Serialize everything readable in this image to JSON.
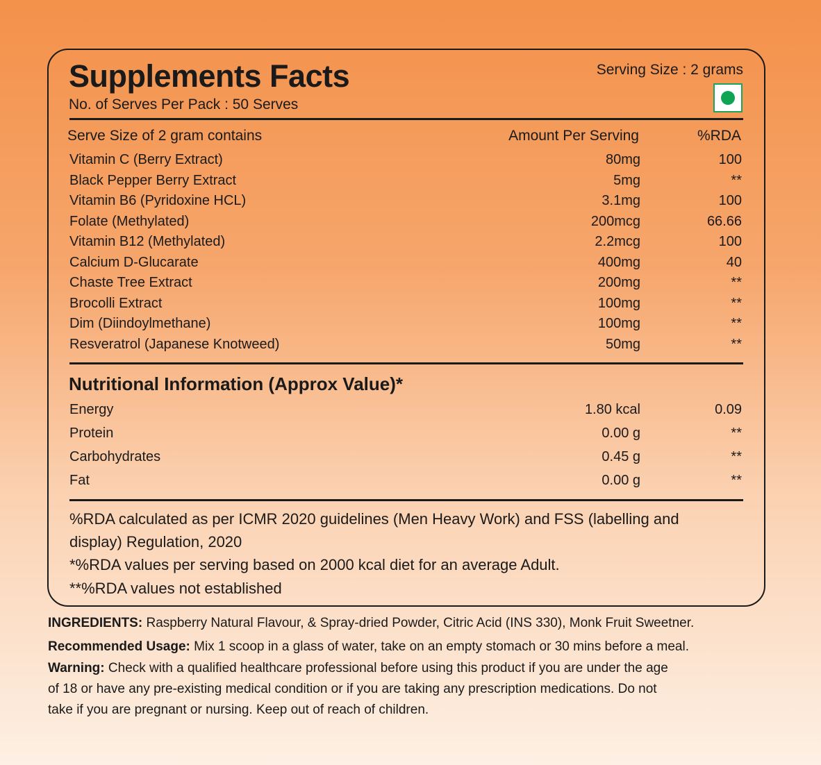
{
  "header": {
    "title": "Supplements Facts",
    "serves_per_pack": "No. of Serves Per Pack : 50 Serves",
    "serving_size": "Serving Size : 2 grams",
    "veg_mark": "veg-symbol-icon",
    "veg_color": "#0ea456"
  },
  "supplements": {
    "columns": [
      "Serve Size of 2 gram contains",
      "Amount Per Serving",
      "%RDA"
    ],
    "rows": [
      {
        "name": "Vitamin C (Berry Extract)",
        "amount": "80mg",
        "rda": "100"
      },
      {
        "name": "Black Pepper Berry Extract",
        "amount": "5mg",
        "rda": "**"
      },
      {
        "name": "Vitamin B6 (Pyridoxine HCL)",
        "amount": "3.1mg",
        "rda": "100"
      },
      {
        "name": "Folate (Methylated)",
        "amount": "200mcg",
        "rda": "66.66"
      },
      {
        "name": "Vitamin B12 (Methylated)",
        "amount": "2.2mcg",
        "rda": "100"
      },
      {
        "name": "Calcium D-Glucarate",
        "amount": "400mg",
        "rda": "40"
      },
      {
        "name": "Chaste Tree Extract",
        "amount": "200mg",
        "rda": "**"
      },
      {
        "name": "Brocolli Extract",
        "amount": "100mg",
        "rda": "**"
      },
      {
        "name": "Dim (Diindoylmethane)",
        "amount": "100mg",
        "rda": "**"
      },
      {
        "name": "Resveratrol (Japanese Knotweed)",
        "amount": "50mg",
        "rda": "**"
      }
    ]
  },
  "nutrition": {
    "title": "Nutritional Information (Approx Value)*",
    "rows": [
      {
        "name": "Energy",
        "amount": "1.80 kcal",
        "rda": "0.09"
      },
      {
        "name": "Protein",
        "amount": "0.00 g",
        "rda": "**"
      },
      {
        "name": "Carbohydrates",
        "amount": "0.45 g",
        "rda": "**"
      },
      {
        "name": "Fat",
        "amount": "0.00 g",
        "rda": "**"
      }
    ]
  },
  "footnotes": [
    "%RDA calculated as per ICMR 2020 guidelines (Men Heavy Work) and FSS (labelling and",
    "display) Regulation, 2020",
    "*%RDA values per serving based on 2000 kcal diet for an average Adult.",
    "**%RDA values not established"
  ],
  "info": {
    "ingredients_label": "INGREDIENTS:",
    "ingredients": " Raspberry Natural Flavour, & Spray-dried Powder, Citric Acid (INS 330), Monk Fruit Sweetner.",
    "usage_label": "Recommended Usage:",
    "usage": " Mix 1 scoop in a glass of water, take on an empty stomach or 30 mins before a meal.",
    "warning_label": "Warning:",
    "warning_lines": [
      " Check with a qualified healthcare professional before using this product if you are under the age",
      "of 18 or have any pre-existing medical condition or if you are taking any prescription medications. Do not",
      "take if you are pregnant or nursing. Keep out of reach of children."
    ]
  }
}
